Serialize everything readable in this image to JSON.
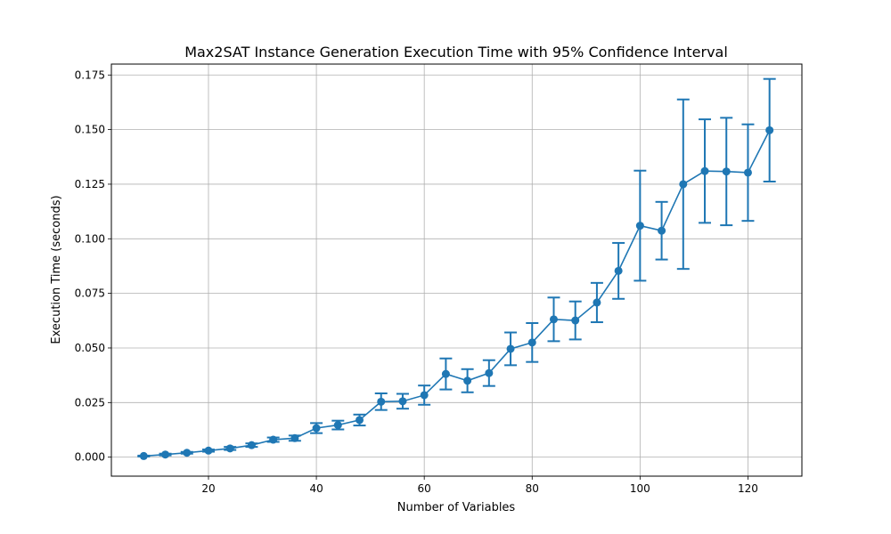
{
  "chart_data": {
    "type": "line",
    "title": "Max2SAT Instance Generation Execution Time with 95% Confidence Interval",
    "xlabel": "Number of Variables",
    "ylabel": "Execution Time (seconds)",
    "xlim": [
      2,
      130
    ],
    "ylim": [
      -0.0087,
      0.18
    ],
    "grid": true,
    "series_color": "#1f77b4",
    "x_ticks": [
      20,
      40,
      60,
      80,
      100,
      120
    ],
    "x_tick_labels": [
      "20",
      "40",
      "60",
      "80",
      "100",
      "120"
    ],
    "y_ticks": [
      0,
      0.025,
      0.05,
      0.075,
      0.1,
      0.125,
      0.15,
      0.175
    ],
    "y_tick_labels": [
      "0.000",
      "0.025",
      "0.050",
      "0.075",
      "0.100",
      "0.125",
      "0.150",
      "0.175"
    ],
    "series": [
      {
        "x": [
          8,
          12,
          16,
          20,
          24,
          28,
          32,
          36,
          40,
          44,
          48,
          52,
          56,
          60,
          64,
          68,
          72,
          76,
          80,
          84,
          88,
          92,
          96,
          100,
          104,
          108,
          112,
          116,
          120,
          124
        ],
        "y": [
          0.0005,
          0.0012,
          0.002,
          0.003,
          0.004,
          0.0055,
          0.008,
          0.0087,
          0.0133,
          0.0147,
          0.017,
          0.0254,
          0.0256,
          0.0284,
          0.0381,
          0.035,
          0.0385,
          0.0496,
          0.0525,
          0.0631,
          0.0626,
          0.0708,
          0.0853,
          0.106,
          0.1037,
          0.125,
          0.131,
          0.1308,
          0.1303,
          0.1497
        ],
        "y_lower": [
          0.0003,
          0.0008,
          0.0016,
          0.0025,
          0.0033,
          0.0047,
          0.007,
          0.0075,
          0.011,
          0.0127,
          0.0145,
          0.0216,
          0.0222,
          0.024,
          0.031,
          0.0297,
          0.0326,
          0.0421,
          0.0436,
          0.0531,
          0.0539,
          0.0618,
          0.0725,
          0.0808,
          0.0905,
          0.0862,
          0.1073,
          0.1062,
          0.1082,
          0.1262
        ],
        "y_upper": [
          0.0007,
          0.0016,
          0.0024,
          0.0035,
          0.0047,
          0.0063,
          0.009,
          0.0099,
          0.0156,
          0.0167,
          0.0195,
          0.0292,
          0.029,
          0.0328,
          0.0452,
          0.0403,
          0.0444,
          0.0571,
          0.0614,
          0.0731,
          0.0713,
          0.0798,
          0.0981,
          0.1312,
          0.1169,
          0.1638,
          0.1547,
          0.1554,
          0.1524,
          0.1732
        ]
      }
    ]
  }
}
